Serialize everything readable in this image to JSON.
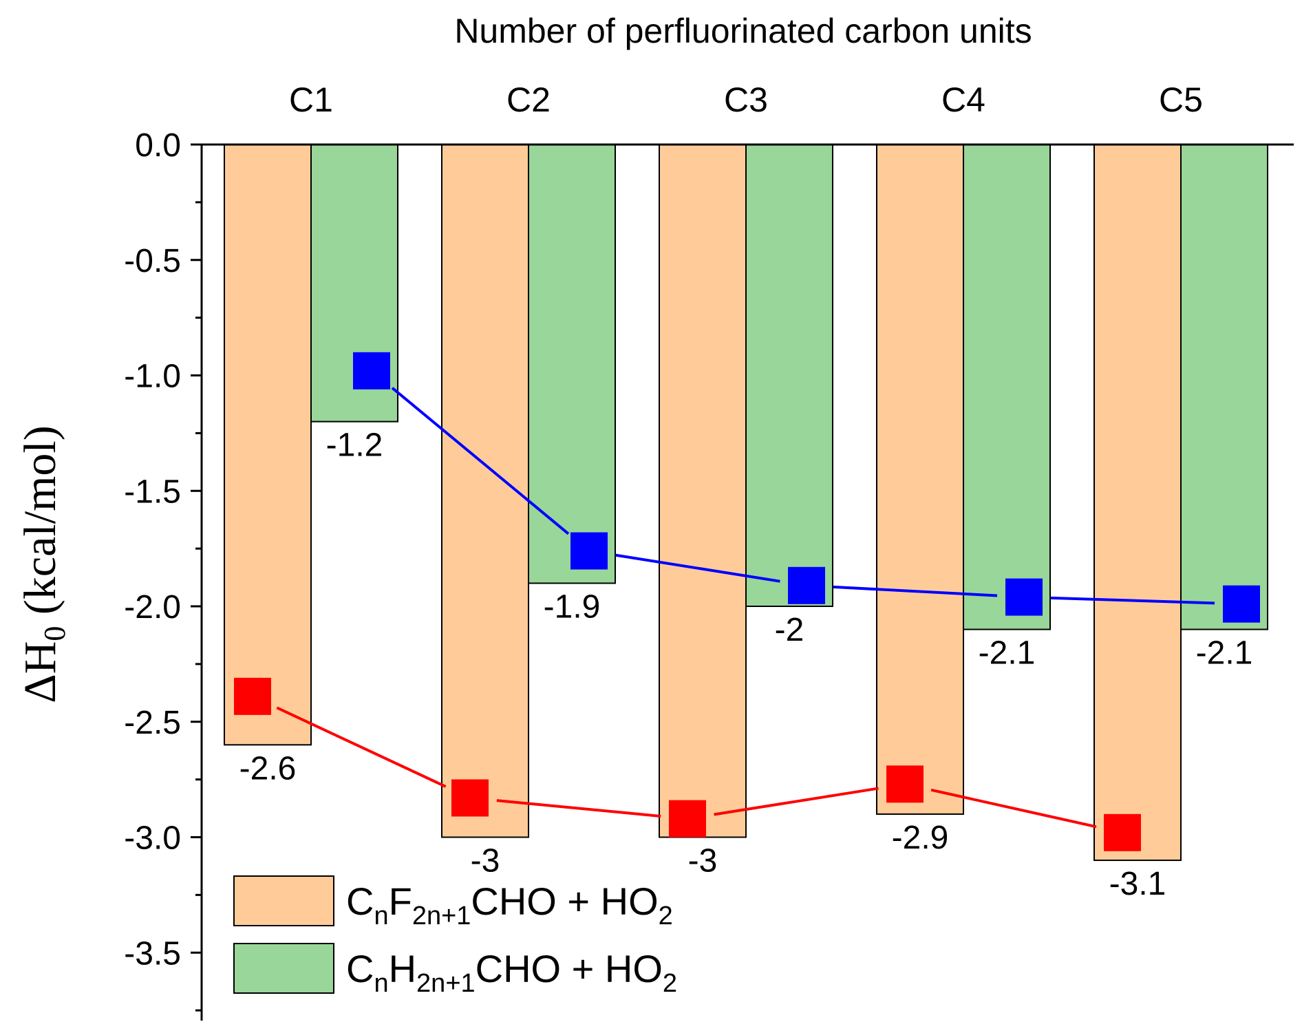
{
  "chart_data": {
    "type": "bar",
    "xlabel": "Number of perfluorinated carbon units",
    "ylabel": "ΔH",
    "ylabel_sub": "0",
    "ylabel_unit": "(kcal/mol)",
    "categories": [
      "C1",
      "C2",
      "C3",
      "C4",
      "C5"
    ],
    "ylim": [
      -3.8,
      0.0
    ],
    "yticks": [
      0.0,
      -0.5,
      -1.0,
      -1.5,
      -2.0,
      -2.5,
      -3.0,
      -3.5
    ],
    "ytick_labels": [
      "0.0",
      "-0.5",
      "-1.0",
      "-1.5",
      "-2.0",
      "-2.5",
      "-3.0",
      "-3.5"
    ],
    "series": [
      {
        "legend_parts": [
          {
            "text": "C",
            "sub": false
          },
          {
            "text": "n",
            "sub": true
          },
          {
            "text": "F",
            "sub": false
          },
          {
            "text": "2n+1",
            "sub": true
          },
          {
            "text": "CHO + HO",
            "sub": false
          },
          {
            "text": "2",
            "sub": true
          }
        ],
        "values": [
          -2.6,
          -3.0,
          -3.0,
          -2.9,
          -3.1
        ],
        "labels": [
          "-2.6",
          "-3",
          "-3",
          "-2.9",
          "-3.1"
        ],
        "color": "#FFCC99"
      },
      {
        "legend_parts": [
          {
            "text": "C",
            "sub": false
          },
          {
            "text": "n",
            "sub": true
          },
          {
            "text": "H",
            "sub": false
          },
          {
            "text": "2n+1",
            "sub": true
          },
          {
            "text": "CHO + HO",
            "sub": false
          },
          {
            "text": "2",
            "sub": true
          }
        ],
        "values": [
          -1.2,
          -1.9,
          -2.0,
          -2.1,
          -2.1
        ],
        "labels": [
          "-1.2",
          "-1.9",
          "-2",
          "-2.1",
          "-2.1"
        ],
        "color": "#99D699"
      }
    ],
    "lines": [
      {
        "color": "#FF0000",
        "values": [
          -2.39,
          -2.83,
          -2.92,
          -2.77,
          -2.98
        ]
      },
      {
        "color": "#0000FF",
        "values": [
          -0.98,
          -1.76,
          -1.91,
          -1.96,
          -1.99
        ]
      }
    ],
    "axis_color": "#000000",
    "legend_position": "bottom-left",
    "grid": false
  }
}
